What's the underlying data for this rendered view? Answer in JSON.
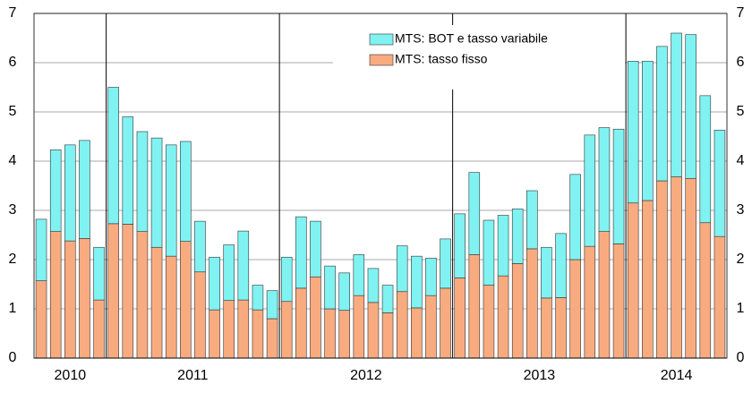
{
  "chart_data": {
    "type": "stacked-bar",
    "categories": [
      "2010",
      "2011",
      "2012",
      "2013",
      "2014"
    ],
    "series": [
      {
        "name": "MTS: tasso fisso",
        "color": "#f9ab80",
        "values": [
          [
            1.57,
            2.57,
            2.38,
            2.43,
            1.18
          ],
          [
            2.73,
            2.72,
            2.57,
            2.25,
            2.07,
            2.37,
            1.75,
            0.98,
            1.17,
            1.18,
            0.98,
            0.8
          ],
          [
            1.15,
            1.42,
            1.65,
            1.0,
            0.97,
            1.27,
            1.13,
            0.92,
            1.35,
            1.02,
            1.27,
            1.42
          ],
          [
            1.63,
            2.1,
            1.48,
            1.67,
            1.92,
            2.22,
            1.22,
            1.23,
            2.0,
            2.27,
            2.57,
            2.32
          ],
          [
            3.15,
            3.2,
            3.6,
            3.68,
            3.65,
            2.75,
            2.47
          ]
        ]
      },
      {
        "name": "MTS: BOT e tasso variabile",
        "color": "#80f2f2",
        "values": [
          [
            1.25,
            1.66,
            1.95,
            1.99,
            1.07
          ],
          [
            2.77,
            2.18,
            2.03,
            2.22,
            2.26,
            2.03,
            1.03,
            1.07,
            1.13,
            1.4,
            0.5,
            0.57
          ],
          [
            0.9,
            1.45,
            1.13,
            0.87,
            0.76,
            0.83,
            0.69,
            0.56,
            0.93,
            1.05,
            0.76,
            1.0
          ],
          [
            1.3,
            1.67,
            1.32,
            1.23,
            1.11,
            1.18,
            1.03,
            1.3,
            1.73,
            2.26,
            2.11,
            2.33
          ],
          [
            2.88,
            2.83,
            2.73,
            2.92,
            2.92,
            2.58,
            2.16
          ]
        ]
      }
    ],
    "ylim": [
      0,
      7
    ],
    "yticks": [
      0,
      1,
      2,
      3,
      4,
      5,
      6,
      7
    ],
    "y2lim": [
      0,
      7
    ],
    "y2ticks": [
      0,
      1,
      2,
      3,
      4,
      5,
      6,
      7
    ],
    "grid": true
  }
}
